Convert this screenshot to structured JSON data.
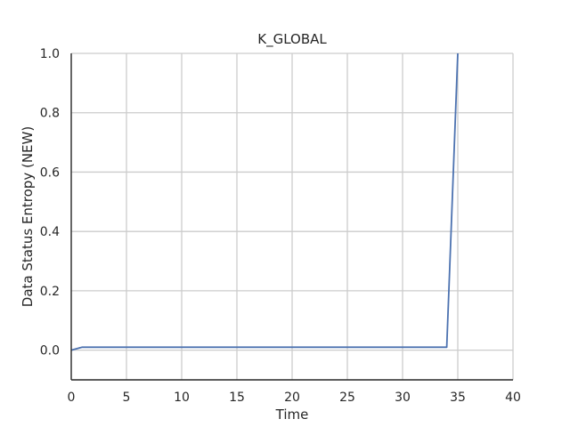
{
  "chart_data": {
    "type": "line",
    "title": "K_GLOBAL",
    "xlabel": "Time",
    "ylabel": "Data Status Entropy (NEW)",
    "xlim": [
      0,
      40
    ],
    "ylim": [
      -0.1,
      1.0
    ],
    "xticks": [
      0,
      5,
      10,
      15,
      20,
      25,
      30,
      35,
      40
    ],
    "yticks": [
      0.0,
      0.2,
      0.4,
      0.6,
      0.8,
      1.0
    ],
    "xtick_labels": [
      "0",
      "5",
      "10",
      "15",
      "20",
      "25",
      "30",
      "35",
      "40"
    ],
    "ytick_labels": [
      "0.0",
      "0.2",
      "0.4",
      "0.6",
      "0.8",
      "1.0"
    ],
    "grid": true,
    "series": [
      {
        "color": "#4c72b0",
        "x": [
          0,
          1,
          2,
          3,
          4,
          5,
          6,
          7,
          8,
          9,
          10,
          11,
          12,
          13,
          14,
          15,
          16,
          17,
          18,
          19,
          20,
          21,
          22,
          23,
          24,
          25,
          26,
          27,
          28,
          29,
          30,
          31,
          32,
          33,
          34,
          35
        ],
        "y": [
          0.0,
          0.01,
          0.01,
          0.01,
          0.01,
          0.01,
          0.01,
          0.01,
          0.01,
          0.01,
          0.01,
          0.01,
          0.01,
          0.01,
          0.01,
          0.01,
          0.01,
          0.01,
          0.01,
          0.01,
          0.01,
          0.01,
          0.01,
          0.01,
          0.01,
          0.01,
          0.01,
          0.01,
          0.01,
          0.01,
          0.01,
          0.01,
          0.01,
          0.01,
          0.01,
          1.0
        ]
      }
    ]
  }
}
